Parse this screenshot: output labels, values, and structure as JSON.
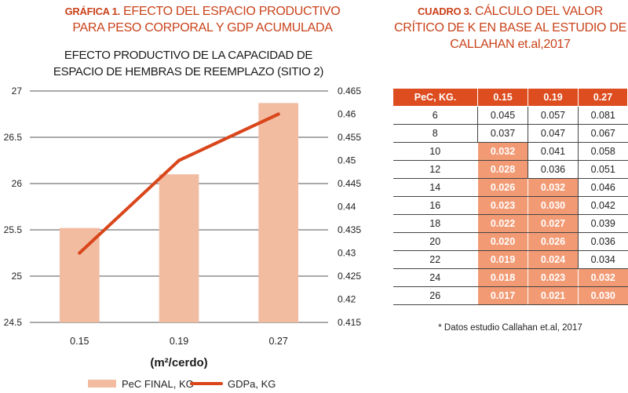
{
  "figure": {
    "label": "GRÁFICA 1.",
    "caption": "EFECTO DEL ESPACIO PRODUCTIVO PARA PESO CORPORAL Y GDP ACUMULADA"
  },
  "table_block": {
    "label": "CUADRO 3.",
    "caption": "CÁLCULO DEL VALOR CRÍTICO DE K EN BASE AL ESTUDIO DE CALLAHAN et.al,2017",
    "note": "* Datos estudio Callahan et.al, 2017",
    "headers": [
      "PeC, KG.",
      "0.15",
      "0.19",
      "0.27"
    ],
    "rows": [
      [
        "6",
        "0.045",
        "0.057",
        "0.081"
      ],
      [
        "8",
        "0.037",
        "0.047",
        "0.067"
      ],
      [
        "10",
        "0.032",
        "0.041",
        "0.058"
      ],
      [
        "12",
        "0.028",
        "0.036",
        "0.051"
      ],
      [
        "14",
        "0.026",
        "0.032",
        "0.046"
      ],
      [
        "16",
        "0.023",
        "0.030",
        "0.042"
      ],
      [
        "18",
        "0.022",
        "0.027",
        "0.039"
      ],
      [
        "20",
        "0.020",
        "0.026",
        "0.036"
      ],
      [
        "22",
        "0.019",
        "0.024",
        "0.034"
      ],
      [
        "24",
        "0.018",
        "0.023",
        "0.032"
      ],
      [
        "26",
        "0.017",
        "0.021",
        "0.030"
      ]
    ],
    "highlighted": [
      [
        2,
        1
      ],
      [
        3,
        1
      ],
      [
        4,
        1
      ],
      [
        4,
        2
      ],
      [
        5,
        1
      ],
      [
        5,
        2
      ],
      [
        6,
        1
      ],
      [
        6,
        2
      ],
      [
        7,
        1
      ],
      [
        7,
        2
      ],
      [
        8,
        1
      ],
      [
        8,
        2
      ],
      [
        9,
        1
      ],
      [
        9,
        2
      ],
      [
        9,
        3
      ],
      [
        10,
        1
      ],
      [
        10,
        2
      ],
      [
        10,
        3
      ]
    ],
    "header_color": "#de4d1f",
    "highlight_color": "#f29a74"
  },
  "chart_data": {
    "type": "bar",
    "title": "EFECTO PRODUCTIVO DE LA CAPACIDAD DE ESPACIO DE HEMBRAS DE REEMPLAZO (SITIO 2)",
    "categories": [
      "0.15",
      "0.19",
      "0.27"
    ],
    "xlabel": "(m²/cerdo)",
    "left_axis": {
      "ylim": [
        24.5,
        27
      ],
      "ticks": [
        "24.5",
        "25",
        "25.5",
        "26",
        "26.5",
        "27"
      ]
    },
    "right_axis": {
      "ylim": [
        0.415,
        0.465
      ],
      "ticks": [
        "0.415",
        "0.42",
        "0.425",
        "0.43",
        "0.435",
        "0.44",
        "0.445",
        "0.45",
        "0.455",
        "0.46",
        "0.465"
      ]
    },
    "series": [
      {
        "name": "PeC FINAL, KG",
        "type": "bar",
        "axis": "left",
        "values": [
          25.52,
          26.1,
          26.87
        ],
        "color": "#f2bca1"
      },
      {
        "name": "GDPa, KG",
        "type": "line",
        "axis": "right",
        "values": [
          0.43,
          0.45,
          0.46
        ],
        "color": "#d9461b"
      }
    ],
    "grid": true,
    "legend_position": "bottom"
  }
}
